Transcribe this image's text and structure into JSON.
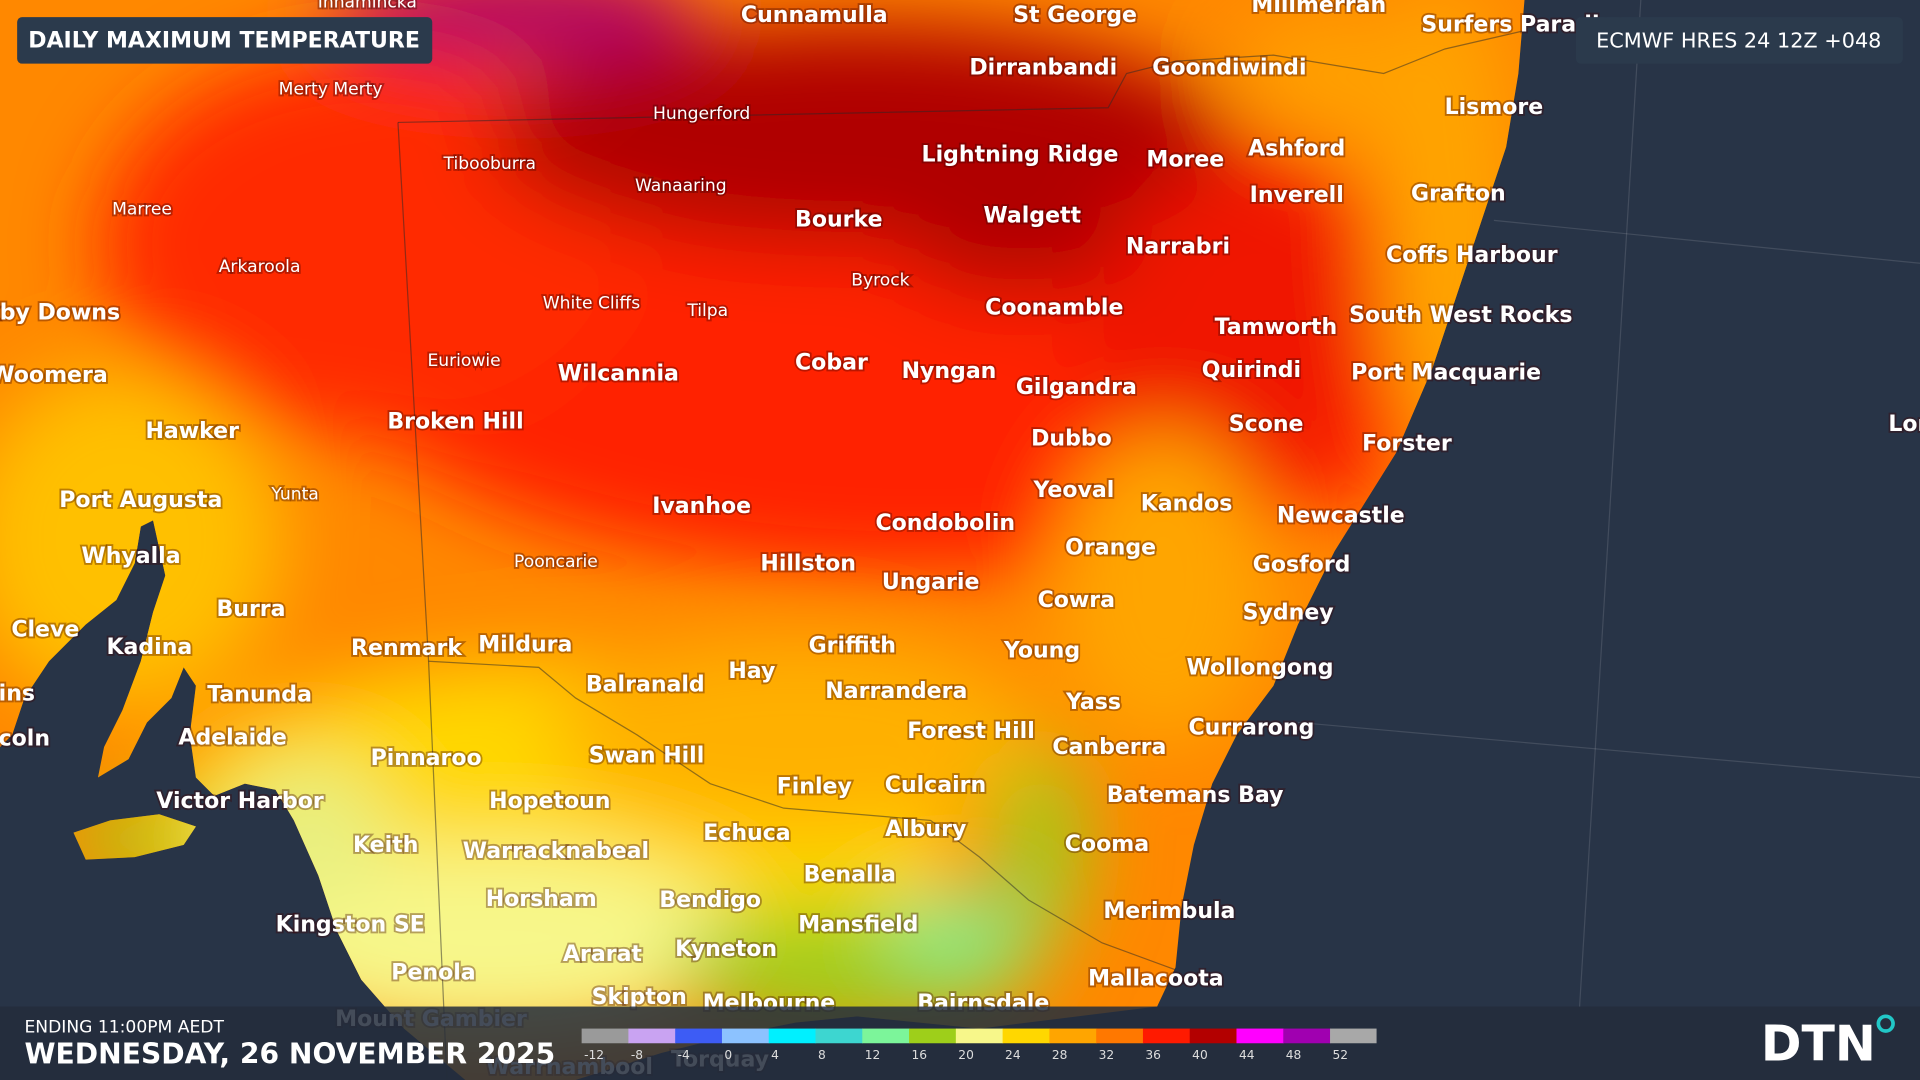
{
  "header": {
    "title": "DAILY MAXIMUM TEMPERATURE",
    "model": "ECMWF HRES 24 12Z +048"
  },
  "footer": {
    "ending": "ENDING 11:00PM AEDT",
    "date": "WEDNESDAY, 26 NOVEMBER 2025",
    "logo": "DTN"
  },
  "legend": {
    "ticks": [
      -12,
      -8,
      -4,
      0,
      4,
      8,
      12,
      16,
      20,
      24,
      28,
      32,
      36,
      40,
      44,
      48,
      52
    ],
    "colors": [
      "#9a9a9a",
      "#c9a3f2",
      "#3d5cf5",
      "#8cc2ff",
      "#00f0ff",
      "#3dd6d0",
      "#7cf59a",
      "#9ecf1a",
      "#f7f78a",
      "#ffd700",
      "#ffa500",
      "#ff7800",
      "#ff1a00",
      "#b30000",
      "#ff00ff",
      "#a000b0",
      "#a8a8a8"
    ]
  },
  "cities": [
    {
      "name": "Innamincka"
    },
    {
      "name": "Cunnamulla"
    },
    {
      "name": "St George"
    },
    {
      "name": "Millmerran"
    },
    {
      "name": "Surfers Paradise"
    },
    {
      "name": "Merty Merty"
    },
    {
      "name": "Hungerford"
    },
    {
      "name": "Dirranbandi"
    },
    {
      "name": "Goondiwindi"
    },
    {
      "name": "Lismore"
    },
    {
      "name": "Tibooburra"
    },
    {
      "name": "Wanaaring"
    },
    {
      "name": "Lightning Ridge"
    },
    {
      "name": "Moree"
    },
    {
      "name": "Ashford"
    },
    {
      "name": "Marree"
    },
    {
      "name": "Bourke"
    },
    {
      "name": "Walgett"
    },
    {
      "name": "Inverell"
    },
    {
      "name": "Grafton"
    },
    {
      "name": "Byrock"
    },
    {
      "name": "Arkaroola"
    },
    {
      "name": "Narrabri"
    },
    {
      "name": "Coffs Harbour"
    },
    {
      "name": "Roxby Downs"
    },
    {
      "name": "White Cliffs"
    },
    {
      "name": "Tilpa"
    },
    {
      "name": "Coonamble"
    },
    {
      "name": "Tamworth"
    },
    {
      "name": "South West Rocks"
    },
    {
      "name": "Woomera"
    },
    {
      "name": "Euriowie"
    },
    {
      "name": "Wilcannia"
    },
    {
      "name": "Cobar"
    },
    {
      "name": "Nyngan"
    },
    {
      "name": "Gilgandra"
    },
    {
      "name": "Quirindi"
    },
    {
      "name": "Port Macquarie"
    },
    {
      "name": "Hawker"
    },
    {
      "name": "Broken Hill"
    },
    {
      "name": "Dubbo"
    },
    {
      "name": "Scone"
    },
    {
      "name": "Forster"
    },
    {
      "name": "Lord Howe Island"
    },
    {
      "name": "Port Augusta"
    },
    {
      "name": "Yunta"
    },
    {
      "name": "Ivanhoe"
    },
    {
      "name": "Yeoval"
    },
    {
      "name": "Kandos"
    },
    {
      "name": "Newcastle"
    },
    {
      "name": "Condobolin"
    },
    {
      "name": "Orange"
    },
    {
      "name": "Whyalla"
    },
    {
      "name": "Pooncarie"
    },
    {
      "name": "Hillston"
    },
    {
      "name": "Gosford"
    },
    {
      "name": "Ungarie"
    },
    {
      "name": "Cowra"
    },
    {
      "name": "Burra"
    },
    {
      "name": "Sydney"
    },
    {
      "name": "Cleve"
    },
    {
      "name": "Kadina"
    },
    {
      "name": "Renmark"
    },
    {
      "name": "Mildura"
    },
    {
      "name": "Griffith"
    },
    {
      "name": "Young"
    },
    {
      "name": "Hay"
    },
    {
      "name": "Balranald"
    },
    {
      "name": "Wollongong"
    },
    {
      "name": "Cummins"
    },
    {
      "name": "Narrandera"
    },
    {
      "name": "Tanunda"
    },
    {
      "name": "Yass"
    },
    {
      "name": "Port Lincoln"
    },
    {
      "name": "Adelaide"
    },
    {
      "name": "Forest Hill"
    },
    {
      "name": "Currarong"
    },
    {
      "name": "Canberra"
    },
    {
      "name": "Pinnaroo"
    },
    {
      "name": "Swan Hill"
    },
    {
      "name": "Finley"
    },
    {
      "name": "Culcairn"
    },
    {
      "name": "Batemans Bay"
    },
    {
      "name": "Victor Harbor"
    },
    {
      "name": "Hopetoun"
    },
    {
      "name": "Echuca"
    },
    {
      "name": "Albury"
    },
    {
      "name": "Cooma"
    },
    {
      "name": "Keith"
    },
    {
      "name": "Warracknabeal"
    },
    {
      "name": "Benalla"
    },
    {
      "name": "Horsham"
    },
    {
      "name": "Bendigo"
    },
    {
      "name": "Merimbula"
    },
    {
      "name": "Kingston SE"
    },
    {
      "name": "Mansfield"
    },
    {
      "name": "Ararat"
    },
    {
      "name": "Kyneton"
    },
    {
      "name": "Penola"
    },
    {
      "name": "Mallacoota"
    },
    {
      "name": "Skipton"
    },
    {
      "name": "Melbourne"
    },
    {
      "name": "Bairnsdale"
    },
    {
      "name": "Mount Gambier"
    },
    {
      "name": "Warrnambool"
    },
    {
      "name": "Torquay"
    }
  ]
}
